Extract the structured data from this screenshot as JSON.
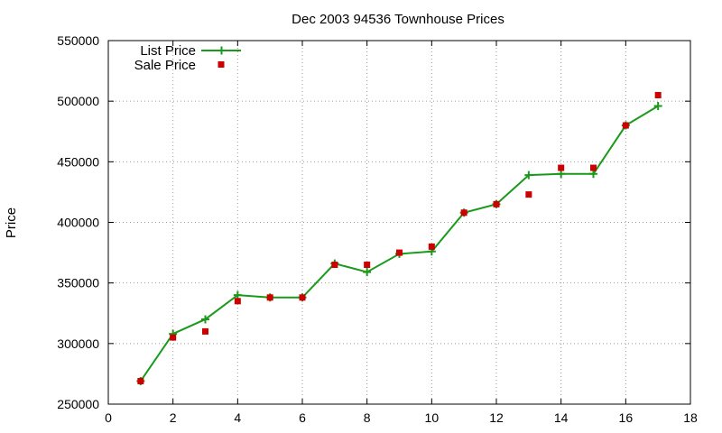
{
  "chart_data": {
    "type": "line",
    "title": "Dec 2003 94536 Townhouse Prices",
    "xlabel": "",
    "ylabel": "Price",
    "xlim": [
      0,
      18
    ],
    "ylim": [
      250000,
      550000
    ],
    "x_ticks": [
      0,
      2,
      4,
      6,
      8,
      10,
      12,
      14,
      16,
      18
    ],
    "y_ticks": [
      250000,
      300000,
      350000,
      400000,
      450000,
      500000,
      550000
    ],
    "x_tick_labels": [
      "0",
      "2",
      "4",
      "6",
      "8",
      "10",
      "12",
      "14",
      "16",
      "18"
    ],
    "y_tick_labels": [
      "250000",
      "300000",
      "350000",
      "400000",
      "450000",
      "500000",
      "550000"
    ],
    "grid": true,
    "legend_position": "top-left",
    "series": [
      {
        "name": "List Price",
        "style": "line-with-plus-markers",
        "color": "#1a9a1a",
        "x": [
          1,
          2,
          3,
          4,
          5,
          6,
          7,
          8,
          9,
          10,
          11,
          12,
          13,
          14,
          15,
          16,
          17
        ],
        "y": [
          269000,
          308000,
          320000,
          340000,
          338000,
          338000,
          366000,
          359000,
          374000,
          376000,
          408000,
          415000,
          439000,
          440000,
          440000,
          480000,
          496000
        ]
      },
      {
        "name": "Sale Price",
        "style": "square-markers",
        "color": "#cc0000",
        "x": [
          1,
          2,
          3,
          4,
          5,
          6,
          7,
          8,
          9,
          10,
          11,
          12,
          13,
          14,
          15,
          16,
          17
        ],
        "y": [
          269000,
          305000,
          310000,
          335000,
          338000,
          338000,
          365000,
          365000,
          375000,
          380000,
          408000,
          415000,
          423000,
          445000,
          445000,
          480000,
          505000
        ]
      }
    ]
  }
}
